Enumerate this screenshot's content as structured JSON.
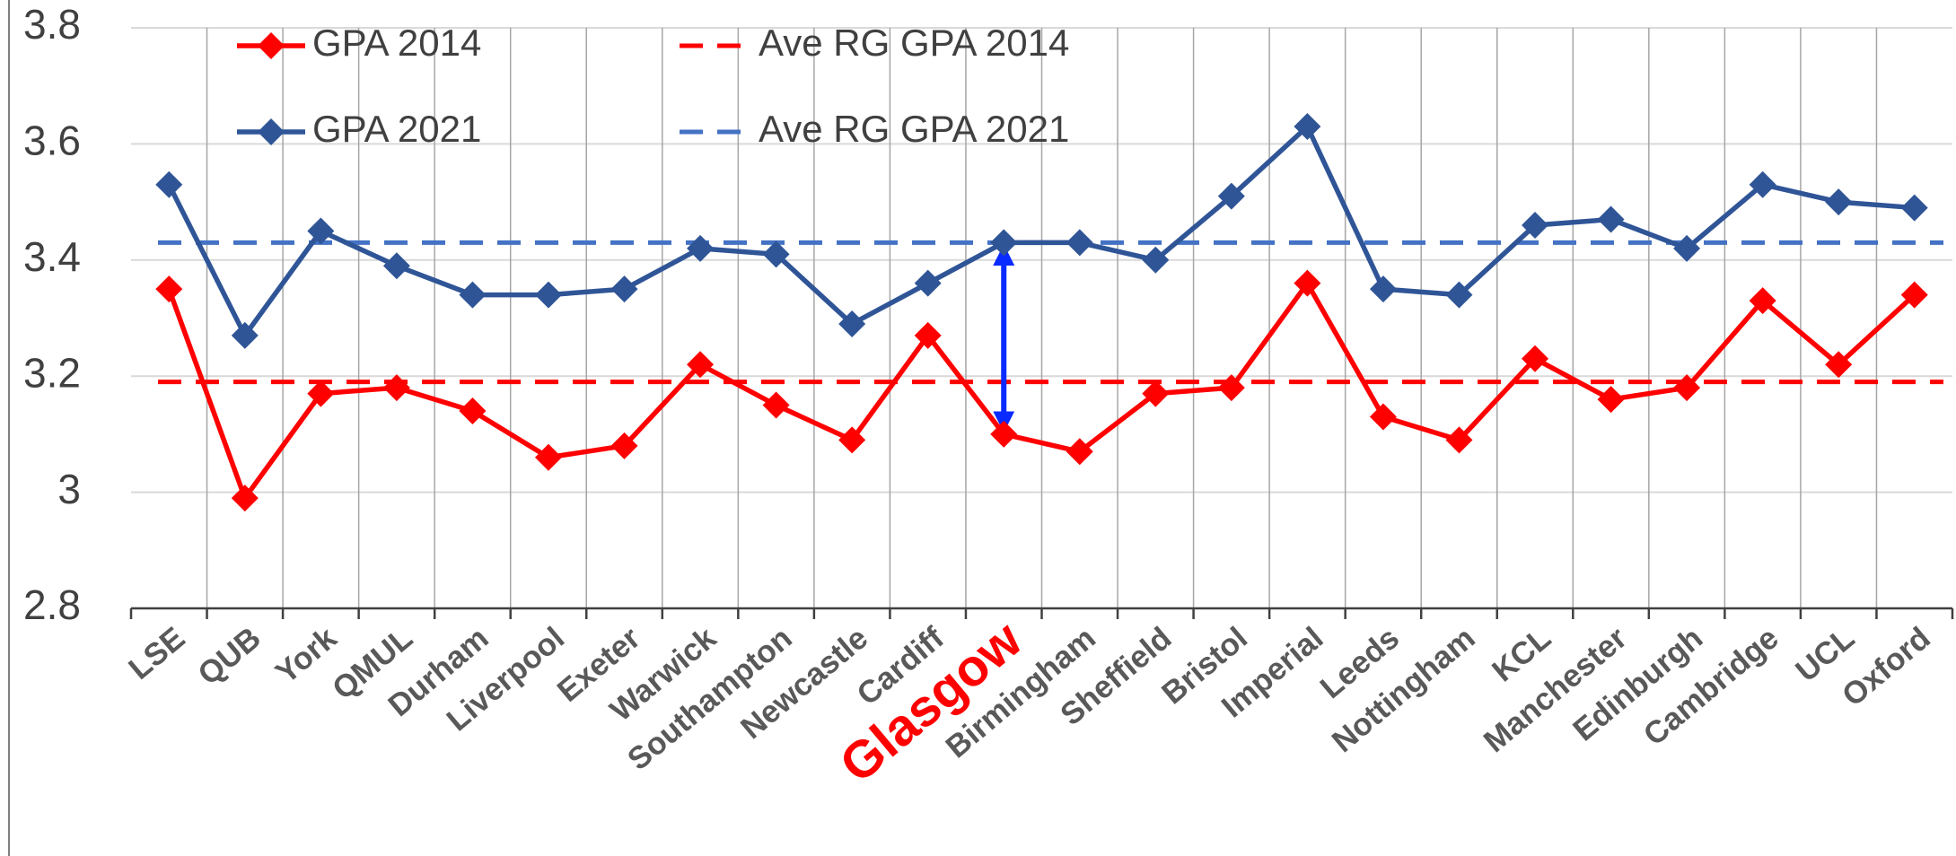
{
  "chart_data": {
    "type": "line",
    "categories": [
      "LSE",
      "QUB",
      "York",
      "QMUL",
      "Durham",
      "Liverpool",
      "Exeter",
      "Warwick",
      "Southampton",
      "Newcastle",
      "Cardiff",
      "Glasgow",
      "Birmingham",
      "Sheffield",
      "Bristol",
      "Imperial",
      "Leeds",
      "Nottingham",
      "KCL",
      "Manchester",
      "Edinburgh",
      "Cambridge",
      "UCL",
      "Oxford"
    ],
    "series": [
      {
        "name": "GPA 2014",
        "color": "#ff0000",
        "values": [
          3.35,
          2.99,
          3.17,
          3.18,
          3.14,
          3.06,
          3.08,
          3.22,
          3.15,
          3.09,
          3.27,
          3.1,
          3.07,
          3.17,
          3.18,
          3.36,
          3.13,
          3.09,
          3.23,
          3.16,
          3.18,
          3.33,
          3.22,
          3.34
        ]
      },
      {
        "name": "GPA 2021",
        "color": "#2f5597",
        "values": [
          3.53,
          3.27,
          3.45,
          3.39,
          3.34,
          3.34,
          3.35,
          3.42,
          3.41,
          3.29,
          3.36,
          3.43,
          3.43,
          3.4,
          3.51,
          3.63,
          3.35,
          3.34,
          3.46,
          3.47,
          3.42,
          3.53,
          3.5,
          3.49
        ]
      }
    ],
    "reference_lines": [
      {
        "name": "Ave RG GPA 2014",
        "color": "#ff0000",
        "value": 3.19
      },
      {
        "name": "Ave RG GPA 2021",
        "color": "#4472c4",
        "value": 3.43
      }
    ],
    "highlight": {
      "category_index": 11,
      "label_color": "#ff0000",
      "arrow_color": "#0a2bff"
    },
    "ylim": [
      2.8,
      3.8
    ],
    "yticks": [
      2.8,
      3,
      3.2,
      3.4,
      3.6,
      3.8
    ],
    "grid": true
  }
}
